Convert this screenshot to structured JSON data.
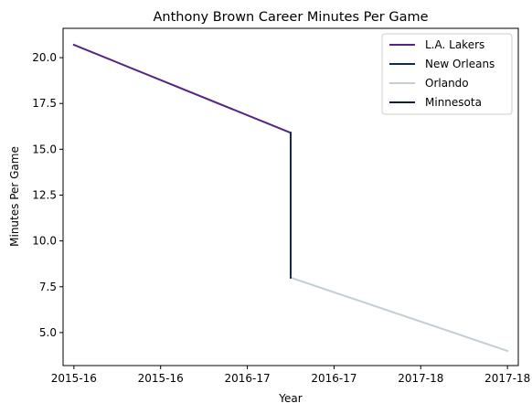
{
  "chart_data": {
    "type": "line",
    "title": "Anthony Brown  Career Minutes Per Game",
    "xlabel": "Year",
    "ylabel": "Minutes Per Game",
    "x_ticks": [
      "2015-16",
      "2015-16",
      "2016-17",
      "2016-17",
      "2017-18",
      "2017-18"
    ],
    "xlim": [
      -0.1,
      4.1
    ],
    "ylim": [
      3.2,
      21.6
    ],
    "y_ticks": [
      5.0,
      7.5,
      10.0,
      12.5,
      15.0,
      17.5,
      20.0
    ],
    "y_tick_labels": [
      "5.0",
      "7.5",
      "10.0",
      "12.5",
      "15.0",
      "17.5",
      "20.0"
    ],
    "grid": false,
    "legend_position": "top-right",
    "series": [
      {
        "name": "L.A. Lakers",
        "color": "#552583",
        "points": [
          [
            0,
            20.7
          ],
          [
            2.0,
            15.9
          ]
        ]
      },
      {
        "name": "New Orleans",
        "color": "#0c2c56",
        "points": [
          [
            2.0,
            15.9
          ],
          [
            2.0,
            8.0
          ]
        ]
      },
      {
        "name": "Orlando",
        "color": "#c4ced4",
        "points": [
          [
            2.0,
            8.0
          ],
          [
            4.0,
            4.0
          ]
        ]
      },
      {
        "name": "Minnesota",
        "color": "#0c2340",
        "points": [
          [
            2.0,
            8.0
          ],
          [
            2.0,
            8.0
          ]
        ]
      }
    ]
  }
}
